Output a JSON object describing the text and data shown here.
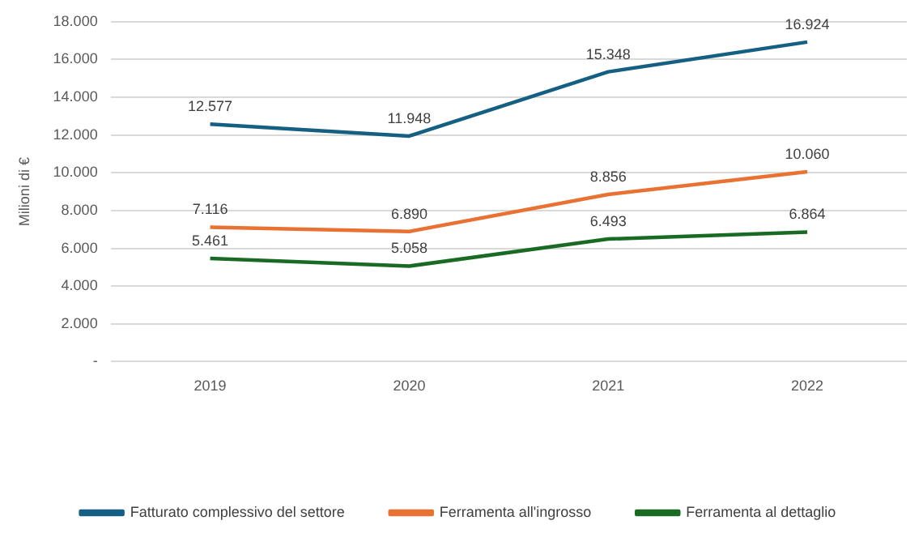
{
  "chart_data": {
    "type": "line",
    "ylabel": "Milioni di €",
    "categories": [
      "2019",
      "2020",
      "2021",
      "2022"
    ],
    "series": [
      {
        "name": "Fatturato complessivo del settore",
        "color": "#156082",
        "values": [
          12577,
          11948,
          15348,
          16924
        ],
        "value_labels": [
          "12.577",
          "11.948",
          "15.348",
          "16.924"
        ]
      },
      {
        "name": "Ferramenta all'ingrosso",
        "color": "#e97132",
        "values": [
          7116,
          6890,
          8856,
          10060
        ],
        "value_labels": [
          "7.116",
          "6.890",
          "8.856",
          "10.060"
        ]
      },
      {
        "name": "Ferramenta al dettaglio",
        "color": "#196b24",
        "values": [
          5461,
          5058,
          6493,
          6864
        ],
        "value_labels": [
          "5.461",
          "5.058",
          "6.493",
          "6.864"
        ]
      }
    ],
    "ylim": [
      0,
      18000
    ],
    "yticks": [
      {
        "value": 0,
        "label": "-"
      },
      {
        "value": 2000,
        "label": "2.000"
      },
      {
        "value": 4000,
        "label": "4.000"
      },
      {
        "value": 6000,
        "label": "6.000"
      },
      {
        "value": 8000,
        "label": "8.000"
      },
      {
        "value": 10000,
        "label": "10.000"
      },
      {
        "value": 12000,
        "label": "12.000"
      },
      {
        "value": 14000,
        "label": "14.000"
      },
      {
        "value": 16000,
        "label": "16.000"
      },
      {
        "value": 18000,
        "label": "18.000"
      }
    ],
    "grid": "y",
    "legend": "bottom",
    "marker": "none",
    "line_style": "solid"
  }
}
